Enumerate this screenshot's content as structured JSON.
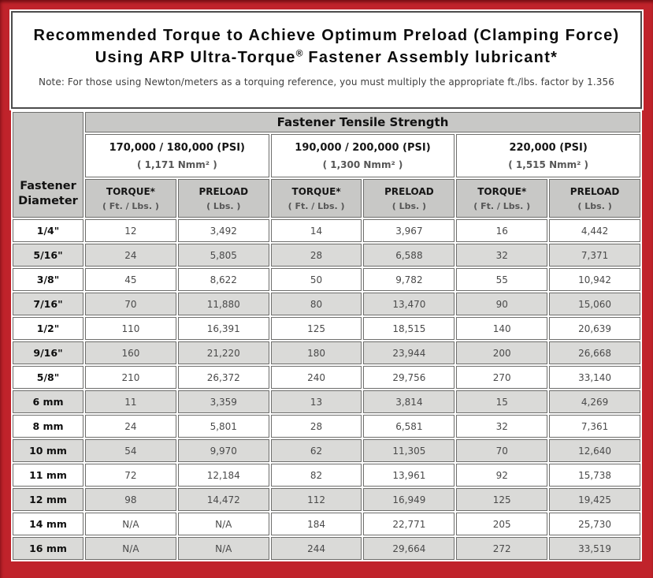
{
  "title": {
    "line1": "Recommended Torque to Achieve Optimum Preload (Clamping Force)",
    "line2_pre": "Using ARP Ultra-Torque",
    "line2_sup": "®",
    "line2_post": " Fastener Assembly lubricant*",
    "note": "Note: For those using Newton/meters as a torquing reference, you must multiply the appropriate ft./lbs. factor by 1.356"
  },
  "table": {
    "corner_header": {
      "line1": "Fastener",
      "line2": "Diameter"
    },
    "tensile_header": "Fastener Tensile Strength",
    "strength_groups": [
      {
        "psi": "170,000 / 180,000 (PSI)",
        "nmm": "( 1,171 Nmm² )"
      },
      {
        "psi": "190,000 / 200,000 (PSI)",
        "nmm": "( 1,300 Nmm² )"
      },
      {
        "psi": "220,000 (PSI)",
        "nmm": "( 1,515 Nmm² )"
      }
    ],
    "col_headers": {
      "torque_label": "TORQUE*",
      "torque_unit": "( Ft. / Lbs. )",
      "preload_label": "PRELOAD",
      "preload_unit": "( Lbs. )"
    },
    "rows": [
      {
        "diameter": "1/4\"",
        "values": [
          "12",
          "3,492",
          "14",
          "3,967",
          "16",
          "4,442"
        ]
      },
      {
        "diameter": "5/16\"",
        "values": [
          "24",
          "5,805",
          "28",
          "6,588",
          "32",
          "7,371"
        ]
      },
      {
        "diameter": "3/8\"",
        "values": [
          "45",
          "8,622",
          "50",
          "9,782",
          "55",
          "10,942"
        ]
      },
      {
        "diameter": "7/16\"",
        "values": [
          "70",
          "11,880",
          "80",
          "13,470",
          "90",
          "15,060"
        ]
      },
      {
        "diameter": "1/2\"",
        "values": [
          "110",
          "16,391",
          "125",
          "18,515",
          "140",
          "20,639"
        ]
      },
      {
        "diameter": "9/16\"",
        "values": [
          "160",
          "21,220",
          "180",
          "23,944",
          "200",
          "26,668"
        ]
      },
      {
        "diameter": "5/8\"",
        "values": [
          "210",
          "26,372",
          "240",
          "29,756",
          "270",
          "33,140"
        ]
      },
      {
        "diameter": "6 mm",
        "values": [
          "11",
          "3,359",
          "13",
          "3,814",
          "15",
          "4,269"
        ]
      },
      {
        "diameter": "8 mm",
        "values": [
          "24",
          "5,801",
          "28",
          "6,581",
          "32",
          "7,361"
        ]
      },
      {
        "diameter": "10 mm",
        "values": [
          "54",
          "9,970",
          "62",
          "11,305",
          "70",
          "12,640"
        ]
      },
      {
        "diameter": "11 mm",
        "values": [
          "72",
          "12,184",
          "82",
          "13,961",
          "92",
          "15,738"
        ]
      },
      {
        "diameter": "12 mm",
        "values": [
          "98",
          "14,472",
          "112",
          "16,949",
          "125",
          "19,425"
        ]
      },
      {
        "diameter": "14 mm",
        "values": [
          "N/A",
          "N/A",
          "184",
          "22,771",
          "205",
          "25,730"
        ]
      },
      {
        "diameter": "16 mm",
        "values": [
          "N/A",
          "N/A",
          "244",
          "29,664",
          "272",
          "33,519"
        ]
      }
    ]
  },
  "colors": {
    "frame_red": "#c0232b",
    "panel_border": "#4c4c4c",
    "header_gray": "#c8c8c6",
    "row_alt_gray": "#dadad8",
    "cell_border": "#6e6e6c"
  }
}
